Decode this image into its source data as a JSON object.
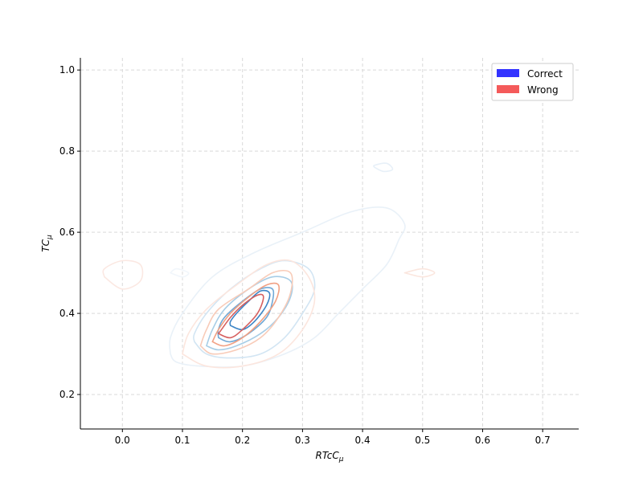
{
  "chart_data": {
    "type": "contour",
    "title": "",
    "xlabel_main": "RTcC",
    "xlabel_sub": "μ",
    "ylabel_main": "TC",
    "ylabel_sub": "μ",
    "xlim": [
      -0.07,
      0.76
    ],
    "ylim": [
      0.115,
      1.03
    ],
    "xticks": [
      {
        "value": 0.0,
        "label": "0.0"
      },
      {
        "value": 0.1,
        "label": "0.1"
      },
      {
        "value": 0.2,
        "label": "0.2"
      },
      {
        "value": 0.3,
        "label": "0.3"
      },
      {
        "value": 0.4,
        "label": "0.4"
      },
      {
        "value": 0.5,
        "label": "0.5"
      },
      {
        "value": 0.6,
        "label": "0.6"
      },
      {
        "value": 0.7,
        "label": "0.7"
      }
    ],
    "yticks": [
      {
        "value": 0.2,
        "label": "0.2"
      },
      {
        "value": 0.4,
        "label": "0.4"
      },
      {
        "value": 0.6,
        "label": "0.6"
      },
      {
        "value": 0.8,
        "label": "0.8"
      },
      {
        "value": 1.0,
        "label": "1.0"
      }
    ],
    "grid": true,
    "legend_position": "top-right",
    "series": [
      {
        "name": "Correct",
        "legend_color": "#3333ff",
        "contours": [
          {
            "level": 1,
            "color": "#e9f1f8",
            "points": [
              [
                0.08,
                0.3
              ],
              [
                0.09,
                0.28
              ],
              [
                0.13,
                0.27
              ],
              [
                0.2,
                0.27
              ],
              [
                0.27,
                0.3
              ],
              [
                0.32,
                0.34
              ],
              [
                0.36,
                0.4
              ],
              [
                0.4,
                0.46
              ],
              [
                0.44,
                0.52
              ],
              [
                0.46,
                0.58
              ],
              [
                0.47,
                0.62
              ],
              [
                0.44,
                0.66
              ],
              [
                0.38,
                0.65
              ],
              [
                0.3,
                0.6
              ],
              [
                0.22,
                0.55
              ],
              [
                0.15,
                0.49
              ],
              [
                0.1,
                0.4
              ],
              [
                0.08,
                0.34
              ],
              [
                0.08,
                0.3
              ]
            ]
          },
          {
            "level": 2,
            "color": "#d2e5f3",
            "points": [
              [
                0.12,
                0.33
              ],
              [
                0.14,
                0.3
              ],
              [
                0.18,
                0.29
              ],
              [
                0.23,
                0.3
              ],
              [
                0.27,
                0.34
              ],
              [
                0.3,
                0.4
              ],
              [
                0.32,
                0.46
              ],
              [
                0.31,
                0.51
              ],
              [
                0.27,
                0.53
              ],
              [
                0.23,
                0.51
              ],
              [
                0.18,
                0.46
              ],
              [
                0.14,
                0.4
              ],
              [
                0.12,
                0.35
              ],
              [
                0.12,
                0.33
              ]
            ]
          },
          {
            "level": 3,
            "color": "#a7cde6",
            "points": [
              [
                0.14,
                0.32
              ],
              [
                0.16,
                0.31
              ],
              [
                0.19,
                0.32
              ],
              [
                0.23,
                0.35
              ],
              [
                0.26,
                0.39
              ],
              [
                0.28,
                0.44
              ],
              [
                0.28,
                0.48
              ],
              [
                0.25,
                0.49
              ],
              [
                0.21,
                0.46
              ],
              [
                0.17,
                0.41
              ],
              [
                0.15,
                0.36
              ],
              [
                0.14,
                0.32
              ]
            ]
          },
          {
            "level": 4,
            "color": "#6fa8d6",
            "points": [
              [
                0.16,
                0.34
              ],
              [
                0.18,
                0.33
              ],
              [
                0.21,
                0.35
              ],
              [
                0.24,
                0.39
              ],
              [
                0.25,
                0.43
              ],
              [
                0.25,
                0.46
              ],
              [
                0.23,
                0.46
              ],
              [
                0.2,
                0.43
              ],
              [
                0.17,
                0.39
              ],
              [
                0.16,
                0.36
              ],
              [
                0.16,
                0.34
              ]
            ]
          },
          {
            "level": 5,
            "color": "#3d85c6",
            "points": [
              [
                0.18,
                0.37
              ],
              [
                0.2,
                0.36
              ],
              [
                0.22,
                0.38
              ],
              [
                0.24,
                0.42
              ],
              [
                0.245,
                0.45
              ],
              [
                0.23,
                0.455
              ],
              [
                0.21,
                0.43
              ],
              [
                0.19,
                0.4
              ],
              [
                0.18,
                0.38
              ],
              [
                0.18,
                0.37
              ]
            ]
          },
          {
            "level": 6,
            "color": "#f1f6fb",
            "points": [
              [
                0.08,
                0.5
              ],
              [
                0.1,
                0.49
              ],
              [
                0.11,
                0.5
              ],
              [
                0.09,
                0.51
              ],
              [
                0.08,
                0.5
              ]
            ]
          },
          {
            "level": 7,
            "color": "#e7f0f8",
            "points": [
              [
                0.42,
                0.76
              ],
              [
                0.435,
                0.75
              ],
              [
                0.45,
                0.755
              ],
              [
                0.44,
                0.77
              ],
              [
                0.42,
                0.765
              ],
              [
                0.42,
                0.76
              ]
            ]
          }
        ]
      },
      {
        "name": "Wrong",
        "legend_color": "#f45a5a",
        "contours": [
          {
            "level": 1,
            "color": "#fbe8e2",
            "points": [
              [
                -0.03,
                0.49
              ],
              [
                0.0,
                0.46
              ],
              [
                0.03,
                0.48
              ],
              [
                0.03,
                0.52
              ],
              [
                0.0,
                0.53
              ],
              [
                -0.03,
                0.51
              ],
              [
                -0.03,
                0.49
              ]
            ]
          },
          {
            "level": 2,
            "color": "#fce6de",
            "points": [
              [
                0.1,
                0.3
              ],
              [
                0.14,
                0.27
              ],
              [
                0.2,
                0.27
              ],
              [
                0.26,
                0.3
              ],
              [
                0.3,
                0.36
              ],
              [
                0.32,
                0.43
              ],
              [
                0.31,
                0.49
              ],
              [
                0.28,
                0.53
              ],
              [
                0.24,
                0.52
              ],
              [
                0.19,
                0.47
              ],
              [
                0.14,
                0.41
              ],
              [
                0.11,
                0.35
              ],
              [
                0.1,
                0.3
              ]
            ]
          },
          {
            "level": 3,
            "color": "#f8cbb8",
            "points": [
              [
                0.13,
                0.32
              ],
              [
                0.15,
                0.3
              ],
              [
                0.19,
                0.31
              ],
              [
                0.23,
                0.34
              ],
              [
                0.26,
                0.39
              ],
              [
                0.28,
                0.45
              ],
              [
                0.28,
                0.5
              ],
              [
                0.25,
                0.5
              ],
              [
                0.21,
                0.46
              ],
              [
                0.16,
                0.41
              ],
              [
                0.14,
                0.36
              ],
              [
                0.13,
                0.32
              ]
            ]
          },
          {
            "level": 4,
            "color": "#f1a184",
            "points": [
              [
                0.15,
                0.33
              ],
              [
                0.17,
                0.32
              ],
              [
                0.2,
                0.34
              ],
              [
                0.23,
                0.38
              ],
              [
                0.255,
                0.43
              ],
              [
                0.26,
                0.47
              ],
              [
                0.24,
                0.47
              ],
              [
                0.21,
                0.44
              ],
              [
                0.18,
                0.4
              ],
              [
                0.16,
                0.36
              ],
              [
                0.15,
                0.33
              ]
            ]
          },
          {
            "level": 5,
            "color": "#d65f5f",
            "points": [
              [
                0.16,
                0.35
              ],
              [
                0.18,
                0.34
              ],
              [
                0.2,
                0.36
              ],
              [
                0.225,
                0.4
              ],
              [
                0.235,
                0.44
              ],
              [
                0.225,
                0.445
              ],
              [
                0.2,
                0.42
              ],
              [
                0.18,
                0.39
              ],
              [
                0.165,
                0.36
              ],
              [
                0.16,
                0.35
              ]
            ]
          },
          {
            "level": 6,
            "color": "#fbe6de",
            "points": [
              [
                0.47,
                0.5
              ],
              [
                0.5,
                0.49
              ],
              [
                0.52,
                0.5
              ],
              [
                0.5,
                0.51
              ],
              [
                0.47,
                0.5
              ]
            ]
          }
        ]
      }
    ]
  }
}
